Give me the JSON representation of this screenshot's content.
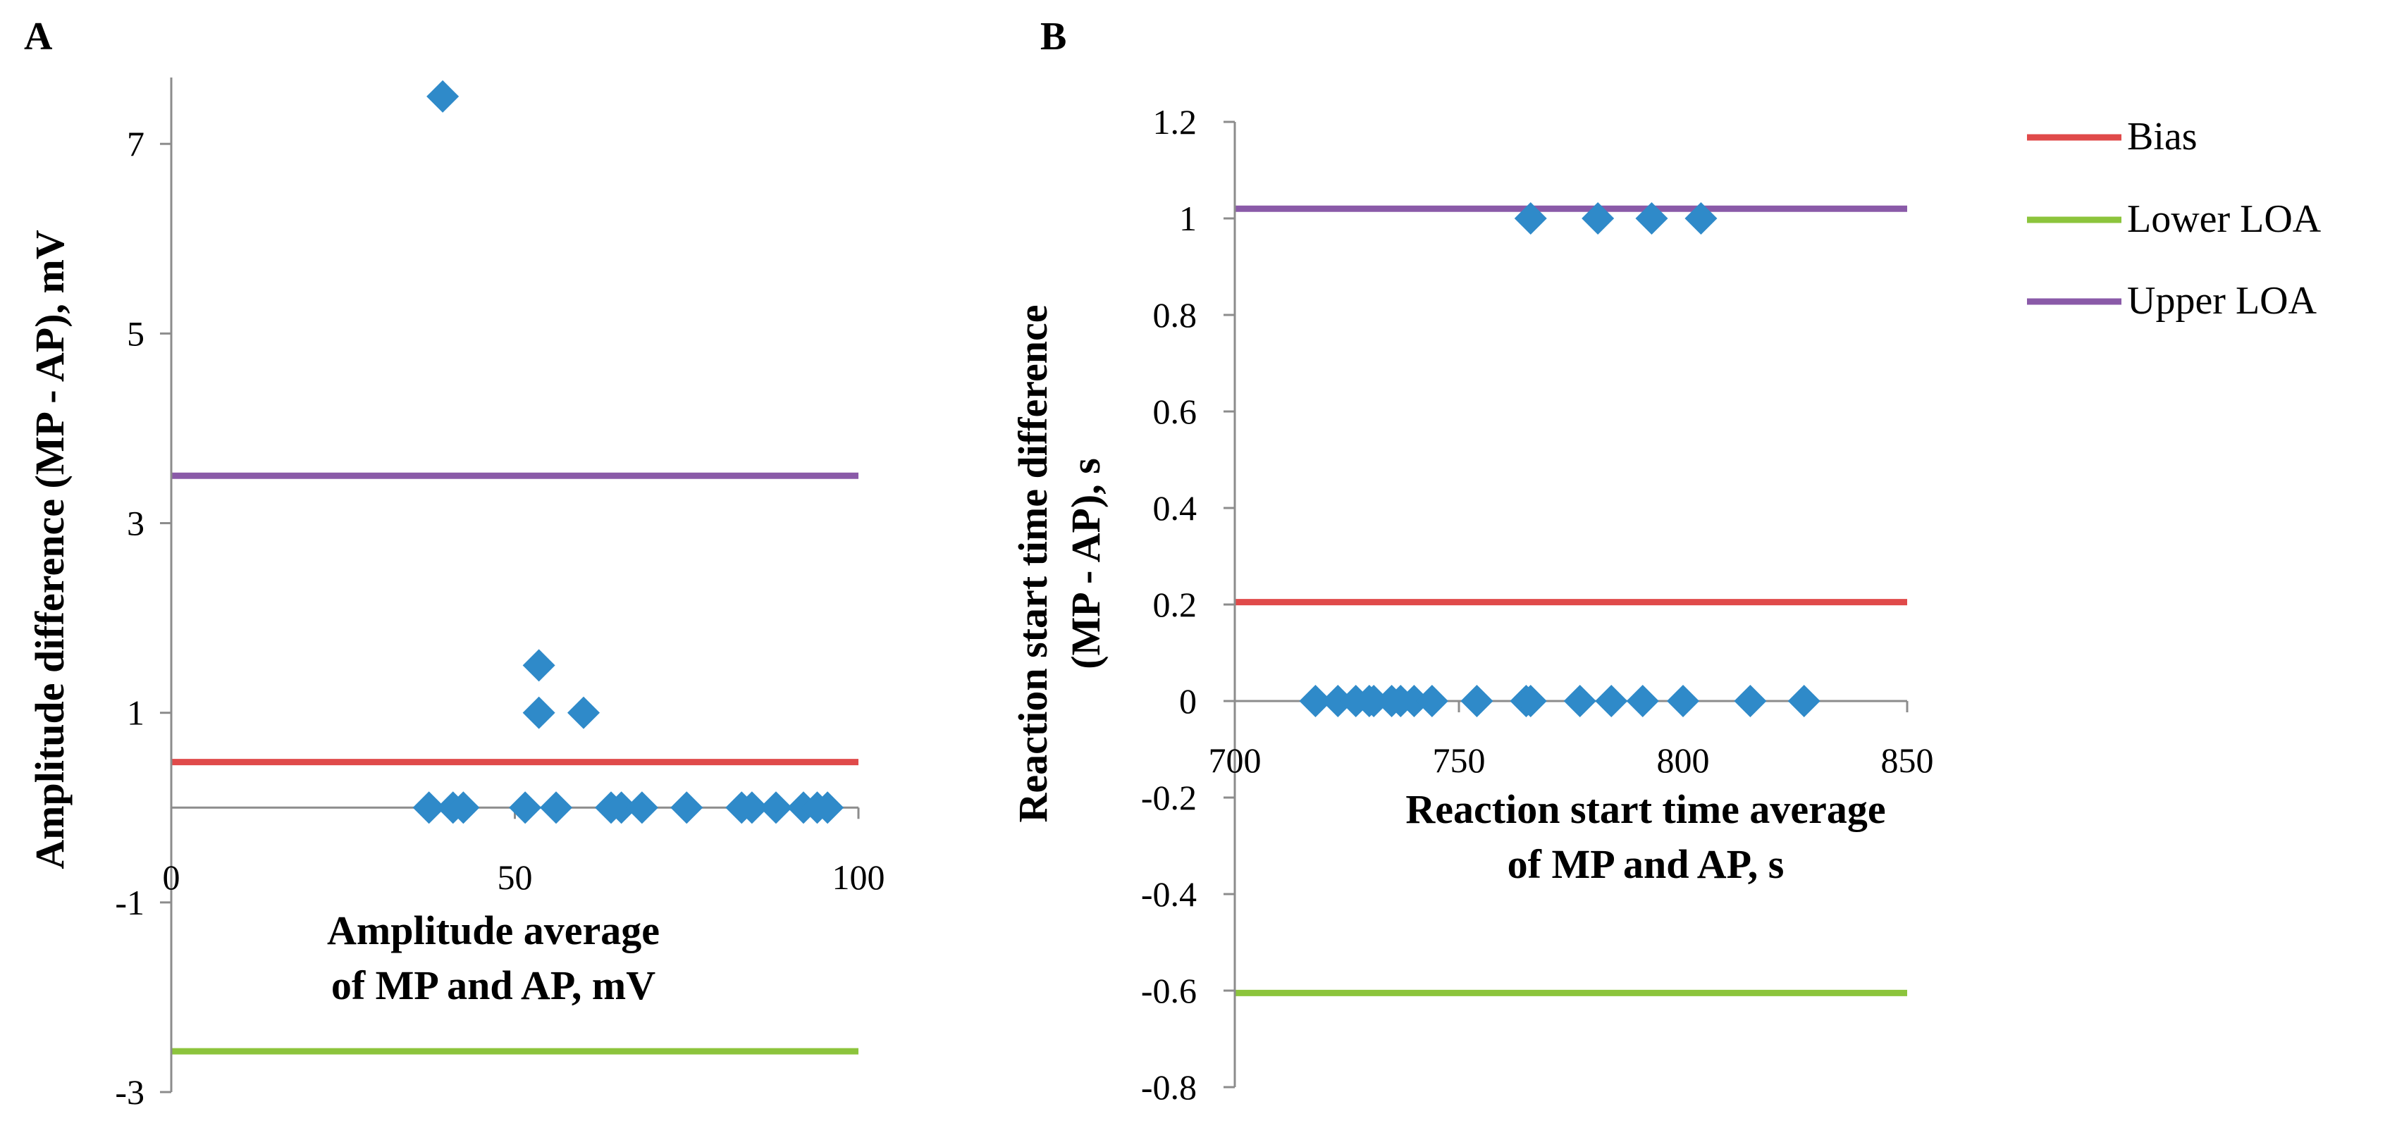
{
  "colors": {
    "bias": "#e04a4a",
    "lower_loa": "#8cc43c",
    "upper_loa": "#8a5aa8",
    "points": "#2f8ac9",
    "axis": "#8c8c8c"
  },
  "legend": {
    "items": [
      {
        "label": "Bias",
        "color": "#e04a4a"
      },
      {
        "label": "Lower LOA",
        "color": "#8cc43c"
      },
      {
        "label": "Upper LOA",
        "color": "#8a5aa8"
      }
    ]
  },
  "chart_data": [
    {
      "panel_label": "A",
      "type": "scatter",
      "title": "",
      "xlabel_lines": [
        "Amplitude average",
        "of MP and AP, mV"
      ],
      "ylabel": "Amplitude difference (MP - AP), mV",
      "xlim": [
        0,
        100
      ],
      "ylim": [
        -3,
        7.7
      ],
      "xticks": [
        0,
        50,
        100
      ],
      "xtick_labels": [
        "0",
        "50",
        "100"
      ],
      "yticks": [
        -3,
        -1,
        1,
        3,
        5,
        7
      ],
      "ytick_labels": [
        "-3",
        "-1",
        "1",
        "3",
        "5",
        "7"
      ],
      "points": {
        "x": [
          39.5,
          37.5,
          41,
          42.5,
          51.5,
          53.5,
          53.5,
          56,
          60,
          64,
          65.5,
          68.5,
          75,
          83,
          84.5,
          88,
          92,
          94,
          95.5
        ],
        "y": [
          7.5,
          0,
          0,
          0,
          0,
          1.5,
          1,
          0,
          1,
          0,
          0,
          0,
          0,
          0,
          0,
          0,
          0,
          0,
          0
        ]
      },
      "lines": {
        "bias": 0.48,
        "lower_loa": -2.57,
        "upper_loa": 3.5
      }
    },
    {
      "panel_label": "B",
      "type": "scatter",
      "title": "",
      "xlabel_lines": [
        "Reaction start time average",
        "of MP and AP, s"
      ],
      "ylabel_lines": [
        "Reaction start time difference",
        "(MP - AP), s"
      ],
      "xlim": [
        700,
        850
      ],
      "ylim": [
        -0.8,
        1.2
      ],
      "xticks": [
        700,
        750,
        800,
        850
      ],
      "xtick_labels": [
        "700",
        "750",
        "800",
        "850"
      ],
      "yticks": [
        -0.8,
        -0.6,
        -0.4,
        -0.2,
        0,
        0.2,
        0.4,
        0.6,
        0.8,
        1,
        1.2
      ],
      "ytick_labels": [
        "-0.8",
        "-0.6",
        "-0.4",
        "-0.2",
        "0",
        "0.2",
        "0.4",
        "0.6",
        "0.8",
        "1",
        "1.2"
      ],
      "points": {
        "x": [
          766,
          781,
          793,
          804,
          718,
          723,
          727,
          730,
          731,
          735,
          737,
          740,
          744,
          754,
          765,
          766,
          777,
          784,
          791,
          800,
          815,
          827
        ],
        "y": [
          1,
          1,
          1,
          1,
          0,
          0,
          0,
          0,
          0,
          0,
          0,
          0,
          0,
          0,
          0,
          0,
          0,
          0,
          0,
          0,
          0,
          0
        ]
      },
      "lines": {
        "bias": 0.205,
        "lower_loa": -0.605,
        "upper_loa": 1.02
      }
    }
  ]
}
